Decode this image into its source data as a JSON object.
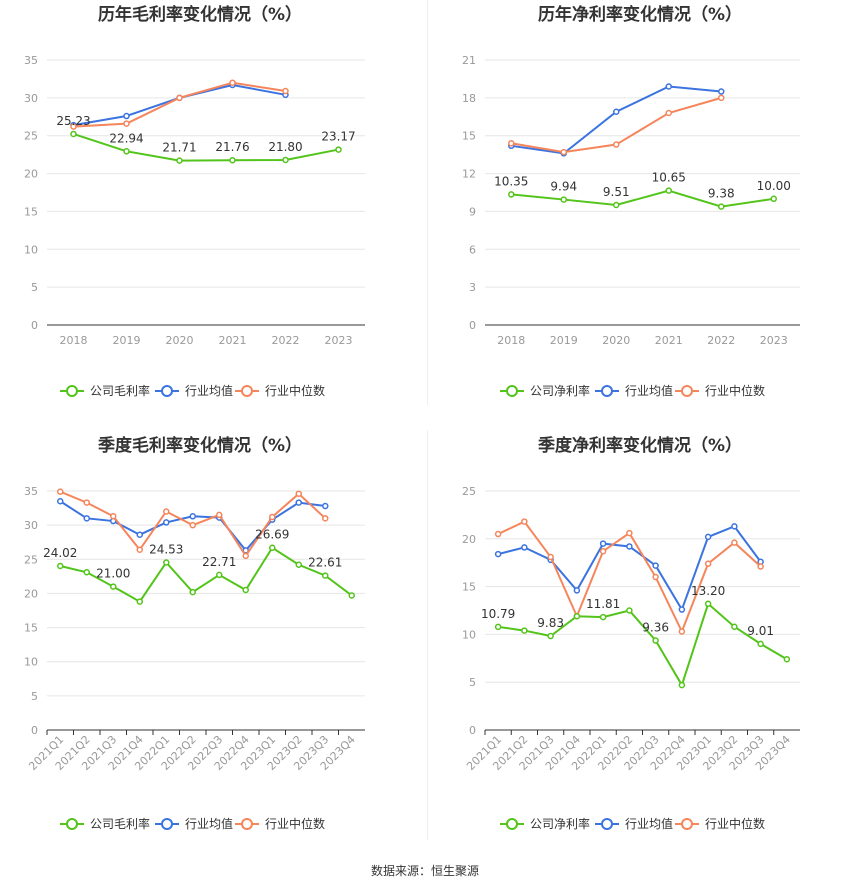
{
  "colors": {
    "company": "#52c41a",
    "industry_avg": "#3b73e0",
    "industry_median": "#f5855b"
  },
  "source_text": "数据来源：恒生聚源",
  "chart_data": [
    {
      "type": "line",
      "title": "历年毛利率变化情况（%）",
      "categories": [
        "2018",
        "2019",
        "2020",
        "2021",
        "2022",
        "2023"
      ],
      "ylim": [
        0,
        35
      ],
      "yticks": [
        0,
        5,
        10,
        15,
        20,
        25,
        30,
        35
      ],
      "legend": [
        "公司毛利率",
        "行业均值",
        "行业中位数"
      ],
      "series": [
        {
          "name": "公司毛利率",
          "values": [
            25.23,
            22.94,
            21.71,
            21.76,
            21.8,
            23.17
          ],
          "labels": [
            "25.23",
            "22.94",
            "21.71",
            "21.76",
            "21.80",
            "23.17"
          ]
        },
        {
          "name": "行业均值",
          "values": [
            26.4,
            27.6,
            30.0,
            31.7,
            30.4,
            null
          ]
        },
        {
          "name": "行业中位数",
          "values": [
            26.2,
            26.6,
            30.0,
            32.0,
            30.9,
            null
          ]
        }
      ]
    },
    {
      "type": "line",
      "title": "历年净利率变化情况（%）",
      "categories": [
        "2018",
        "2019",
        "2020",
        "2021",
        "2022",
        "2023"
      ],
      "ylim": [
        0,
        21
      ],
      "yticks": [
        0,
        3,
        6,
        9,
        12,
        15,
        18,
        21
      ],
      "legend": [
        "公司净利率",
        "行业均值",
        "行业中位数"
      ],
      "series": [
        {
          "name": "公司净利率",
          "values": [
            10.35,
            9.94,
            9.51,
            10.65,
            9.38,
            10.0
          ],
          "labels": [
            "10.35",
            "9.94",
            "9.51",
            "10.65",
            "9.38",
            "10.00"
          ]
        },
        {
          "name": "行业均值",
          "values": [
            14.2,
            13.6,
            16.9,
            18.9,
            18.5,
            null
          ]
        },
        {
          "name": "行业中位数",
          "values": [
            14.4,
            13.7,
            14.3,
            16.8,
            18.0,
            null
          ]
        }
      ]
    },
    {
      "type": "line",
      "title": "季度毛利率变化情况（%）",
      "categories": [
        "2021Q1",
        "2021Q2",
        "2021Q3",
        "2021Q4",
        "2022Q1",
        "2022Q2",
        "2022Q3",
        "2022Q4",
        "2023Q1",
        "2023Q2",
        "2023Q3",
        "2023Q4"
      ],
      "ylim": [
        0,
        35
      ],
      "yticks": [
        0,
        5,
        10,
        15,
        20,
        25,
        30,
        35
      ],
      "legend": [
        "公司毛利率",
        "行业均值",
        "行业中位数"
      ],
      "series": [
        {
          "name": "公司毛利率",
          "values": [
            24.02,
            23.1,
            21.0,
            18.8,
            24.53,
            20.2,
            22.71,
            20.5,
            26.69,
            24.2,
            22.61,
            19.7
          ],
          "labels": [
            "24.02",
            "",
            "21.00",
            "",
            "24.53",
            "",
            "22.71",
            "",
            "26.69",
            "",
            "22.61",
            ""
          ]
        },
        {
          "name": "行业均值",
          "values": [
            33.5,
            31.0,
            30.6,
            28.6,
            30.4,
            31.3,
            31.1,
            26.3,
            30.8,
            33.3,
            32.8,
            null
          ]
        },
        {
          "name": "行业中位数",
          "values": [
            34.9,
            33.3,
            31.3,
            26.4,
            32.0,
            30.0,
            31.5,
            25.5,
            31.2,
            34.6,
            31.0,
            null
          ]
        }
      ]
    },
    {
      "type": "line",
      "title": "季度净利率变化情况（%）",
      "categories": [
        "2021Q1",
        "2021Q2",
        "2021Q3",
        "2021Q4",
        "2022Q1",
        "2022Q2",
        "2022Q3",
        "2022Q4",
        "2023Q1",
        "2023Q2",
        "2023Q3",
        "2023Q4"
      ],
      "ylim": [
        0,
        25
      ],
      "yticks": [
        0,
        5,
        10,
        15,
        20,
        25
      ],
      "legend": [
        "公司净利率",
        "行业均值",
        "行业中位数"
      ],
      "series": [
        {
          "name": "公司净利率",
          "values": [
            10.79,
            10.4,
            9.83,
            11.9,
            11.81,
            12.5,
            9.36,
            4.7,
            13.2,
            10.8,
            9.01,
            7.4
          ],
          "labels": [
            "10.79",
            "",
            "9.83",
            "",
            "11.81",
            "",
            "9.36",
            "",
            "13.20",
            "",
            "9.01",
            ""
          ]
        },
        {
          "name": "行业均值",
          "values": [
            18.4,
            19.1,
            17.8,
            14.6,
            19.5,
            19.2,
            17.2,
            12.6,
            20.2,
            21.3,
            17.6,
            null
          ]
        },
        {
          "name": "行业中位数",
          "values": [
            20.5,
            21.8,
            18.1,
            11.9,
            18.7,
            20.6,
            16.0,
            10.3,
            17.4,
            19.6,
            17.1,
            null
          ]
        }
      ]
    }
  ]
}
